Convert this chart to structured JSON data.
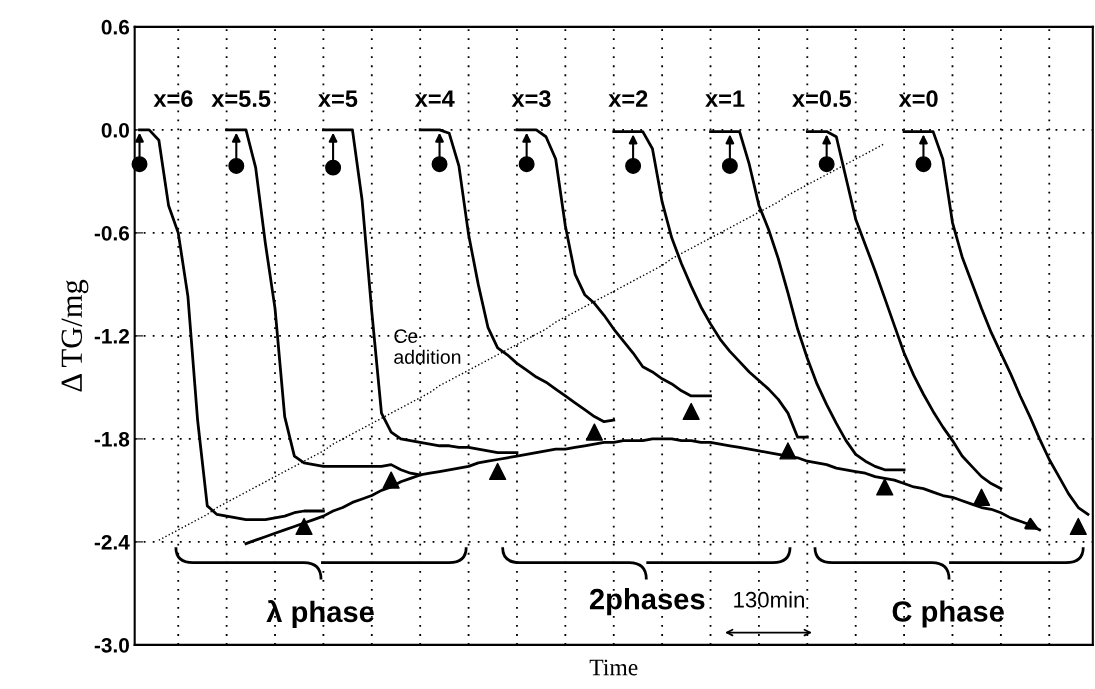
{
  "chart_data": {
    "type": "line",
    "xlabel": "Time",
    "ylabel": "Δ TG/mg",
    "ylim": [
      -3.0,
      0.6
    ],
    "categories": [
      null,
      null,
      null,
      null,
      null,
      null,
      null,
      null,
      null,
      null,
      null,
      null,
      null,
      null,
      null,
      null,
      null,
      null,
      null,
      null,
      null,
      null,
      null,
      null,
      null,
      null,
      null,
      null,
      null,
      null,
      null,
      null,
      null,
      null,
      null,
      null,
      null,
      null,
      null,
      null,
      null,
      null,
      null,
      null,
      null,
      null,
      null,
      null,
      null,
      null,
      null,
      null,
      null,
      null,
      null,
      null,
      null,
      null,
      null,
      null,
      null,
      null,
      null,
      null,
      null,
      null,
      null,
      null,
      null,
      null,
      null,
      null,
      null,
      null,
      null,
      null,
      null,
      null,
      null,
      null,
      null,
      null,
      null,
      null,
      null,
      null,
      null,
      null,
      null,
      null,
      null,
      null,
      null,
      null,
      null,
      null,
      null,
      null,
      null
    ],
    "yticks": [
      {
        "value": 0.6,
        "label": "0.6"
      },
      {
        "value": 0.0,
        "label": "0.0"
      },
      {
        "value": -0.6,
        "label": "-0.6"
      },
      {
        "value": -1.2,
        "label": "-1.2"
      },
      {
        "value": -1.8,
        "label": "-1.8"
      },
      {
        "value": -2.4,
        "label": "-2.4"
      },
      {
        "value": -3.0,
        "label": "-3.0"
      }
    ],
    "tick_labels": "y",
    "grid": true,
    "series": [
      {
        "name": "x=6",
        "color": "#000000",
        "values": [
          0,
          0,
          -0.06,
          -0.44,
          -0.6,
          -0.97,
          -1.69,
          -2.19,
          -2.24,
          -2.25,
          -2.26,
          -2.27,
          -2.27,
          -2.27,
          -2.26,
          -2.25,
          -2.23,
          -2.22,
          -2.22,
          -2.22,
          null,
          null,
          null,
          null,
          null,
          null,
          null,
          null,
          null,
          null,
          null,
          null,
          null,
          null,
          null,
          null,
          null,
          null,
          null,
          null,
          null,
          null,
          null,
          null,
          null,
          null,
          null,
          null,
          null,
          null,
          null,
          null,
          null,
          null,
          null,
          null,
          null,
          null,
          null,
          null,
          null,
          null,
          null,
          null,
          null,
          null,
          null,
          null,
          null,
          null,
          null,
          null,
          null,
          null,
          null,
          null,
          null,
          null,
          null,
          null,
          null,
          null,
          null,
          null,
          null,
          null,
          null,
          null,
          null,
          null,
          null,
          null,
          null,
          null,
          null,
          null,
          null,
          null,
          null
        ]
      },
      {
        "name": "x=5.5",
        "color": "#000000",
        "values": [
          null,
          null,
          null,
          null,
          null,
          null,
          null,
          null,
          null,
          0,
          0,
          0,
          -0.22,
          -0.66,
          -1.04,
          -1.67,
          -1.9,
          -1.94,
          -1.95,
          -1.96,
          -1.96,
          -1.96,
          -1.96,
          -1.96,
          -1.96,
          -1.96,
          -1.95,
          -1.98,
          -2.0,
          -2.01,
          null,
          null,
          null,
          null,
          null,
          null,
          null,
          null,
          null,
          null,
          null,
          null,
          null,
          null,
          null,
          null,
          null,
          null,
          null,
          null,
          null,
          null,
          null,
          null,
          null,
          null,
          null,
          null,
          null,
          null,
          null,
          null,
          null,
          null,
          null,
          null,
          null,
          null,
          null,
          null,
          null,
          null,
          null,
          null,
          null,
          null,
          null,
          null,
          null,
          null,
          null,
          null,
          null,
          null,
          null,
          null,
          null,
          null,
          null,
          null,
          null,
          null,
          null,
          null,
          null,
          null,
          null,
          null,
          null
        ]
      },
      {
        "name": "x=5",
        "color": "#000000",
        "values": [
          null,
          null,
          null,
          null,
          null,
          null,
          null,
          null,
          null,
          null,
          null,
          null,
          null,
          null,
          null,
          null,
          null,
          null,
          null,
          0,
          0,
          0,
          0,
          -0.41,
          -1.06,
          -1.65,
          -1.76,
          -1.8,
          -1.81,
          -1.82,
          -1.83,
          -1.84,
          -1.84,
          -1.85,
          -1.85,
          -1.86,
          -1.87,
          -1.88,
          -1.88,
          -1.88,
          null,
          null,
          null,
          null,
          null,
          null,
          null,
          null,
          null,
          null,
          null,
          null,
          null,
          null,
          null,
          null,
          null,
          null,
          null,
          null,
          null,
          null,
          null,
          null,
          null,
          null,
          null,
          null,
          null,
          null,
          null,
          null,
          null,
          null,
          null,
          null,
          null,
          null,
          null,
          null,
          null,
          null,
          null,
          null,
          null,
          null,
          null,
          null,
          null,
          null,
          null,
          null,
          null,
          null,
          null,
          null,
          null,
          null,
          null
        ]
      },
      {
        "name": "x=4",
        "color": "#000000",
        "values": [
          null,
          null,
          null,
          null,
          null,
          null,
          null,
          null,
          null,
          null,
          null,
          null,
          null,
          null,
          null,
          null,
          null,
          null,
          null,
          null,
          null,
          null,
          null,
          null,
          null,
          null,
          null,
          null,
          null,
          0,
          0,
          0,
          -0.02,
          -0.21,
          -0.61,
          -0.9,
          -1.15,
          -1.27,
          -1.31,
          -1.36,
          -1.4,
          -1.44,
          -1.47,
          -1.51,
          -1.55,
          -1.59,
          -1.63,
          -1.67,
          -1.7,
          -1.69,
          null,
          null,
          null,
          null,
          null,
          null,
          null,
          null,
          null,
          null,
          null,
          null,
          null,
          null,
          null,
          null,
          null,
          null,
          null,
          null,
          null,
          null,
          null,
          null,
          null,
          null,
          null,
          null,
          null,
          null,
          null,
          null,
          null,
          null,
          null,
          null,
          null,
          null,
          null,
          null,
          null,
          null,
          null,
          null,
          null,
          null,
          null,
          null,
          null
        ]
      },
      {
        "name": "x=3",
        "color": "#000000",
        "values": [
          null,
          null,
          null,
          null,
          null,
          null,
          null,
          null,
          null,
          null,
          null,
          null,
          null,
          null,
          null,
          null,
          null,
          null,
          null,
          null,
          null,
          null,
          null,
          null,
          null,
          null,
          null,
          null,
          null,
          null,
          null,
          null,
          null,
          null,
          null,
          null,
          null,
          null,
          null,
          0,
          0,
          0,
          -0.04,
          -0.17,
          -0.56,
          -0.84,
          -0.96,
          -1.01,
          -1.08,
          -1.16,
          -1.23,
          -1.3,
          -1.38,
          -1.41,
          -1.45,
          -1.48,
          -1.52,
          -1.55,
          -1.55,
          -1.55,
          null,
          null,
          null,
          null,
          null,
          null,
          null,
          null,
          null,
          null,
          null,
          null,
          null,
          null,
          null,
          null,
          null,
          null,
          null,
          null,
          null,
          null,
          null,
          null,
          null,
          null,
          null,
          null,
          null,
          null,
          null,
          null,
          null,
          null,
          null,
          null,
          null,
          null,
          null
        ]
      },
      {
        "name": "x=2",
        "color": "#000000",
        "values": [
          null,
          null,
          null,
          null,
          null,
          null,
          null,
          null,
          null,
          null,
          null,
          null,
          null,
          null,
          null,
          null,
          null,
          null,
          null,
          null,
          null,
          null,
          null,
          null,
          null,
          null,
          null,
          null,
          null,
          null,
          null,
          null,
          null,
          null,
          null,
          null,
          null,
          null,
          null,
          null,
          null,
          null,
          null,
          null,
          null,
          null,
          null,
          null,
          null,
          -0.01,
          -0.01,
          -0.01,
          -0.01,
          -0.11,
          -0.42,
          -0.63,
          -0.78,
          -0.91,
          -1.03,
          -1.13,
          -1.22,
          -1.29,
          -1.35,
          -1.41,
          -1.46,
          -1.51,
          -1.57,
          -1.65,
          -1.79,
          -1.79,
          null,
          null,
          null,
          null,
          null,
          null,
          null,
          null,
          null,
          null,
          null,
          null,
          null,
          null,
          null,
          null,
          null,
          null,
          null,
          null,
          null,
          null,
          null,
          null,
          null,
          null,
          null,
          null,
          null
        ]
      },
      {
        "name": "x=1",
        "color": "#000000",
        "values": [
          null,
          null,
          null,
          null,
          null,
          null,
          null,
          null,
          null,
          null,
          null,
          null,
          null,
          null,
          null,
          null,
          null,
          null,
          null,
          null,
          null,
          null,
          null,
          null,
          null,
          null,
          null,
          null,
          null,
          null,
          null,
          null,
          null,
          null,
          null,
          null,
          null,
          null,
          null,
          null,
          null,
          null,
          null,
          null,
          null,
          null,
          null,
          null,
          null,
          null,
          null,
          null,
          null,
          null,
          null,
          null,
          null,
          null,
          null,
          -0.01,
          -0.01,
          -0.01,
          -0.01,
          -0.2,
          -0.44,
          -0.58,
          -0.75,
          -0.95,
          -1.16,
          -1.33,
          -1.48,
          -1.6,
          -1.71,
          -1.81,
          -1.89,
          -1.93,
          -1.96,
          -1.98,
          -1.98,
          -1.98,
          null,
          null,
          null,
          null,
          null,
          null,
          null,
          null,
          null,
          null,
          null,
          null,
          null,
          null,
          null,
          null,
          null,
          null,
          null
        ]
      },
      {
        "name": "x=0.5",
        "color": "#000000",
        "values": [
          null,
          null,
          null,
          null,
          null,
          null,
          null,
          null,
          null,
          null,
          null,
          null,
          null,
          null,
          null,
          null,
          null,
          null,
          null,
          null,
          null,
          null,
          null,
          null,
          null,
          null,
          null,
          null,
          null,
          null,
          null,
          null,
          null,
          null,
          null,
          null,
          null,
          null,
          null,
          null,
          null,
          null,
          null,
          null,
          null,
          null,
          null,
          null,
          null,
          null,
          null,
          null,
          null,
          null,
          null,
          null,
          null,
          null,
          null,
          null,
          null,
          null,
          null,
          null,
          null,
          null,
          null,
          null,
          null,
          -0.01,
          -0.01,
          -0.01,
          -0.04,
          -0.28,
          -0.52,
          -0.67,
          -0.82,
          -0.98,
          -1.14,
          -1.3,
          -1.43,
          -1.54,
          -1.64,
          -1.73,
          -1.81,
          -1.9,
          -1.96,
          -2.02,
          -2.06,
          -2.09,
          null,
          null,
          null,
          null,
          null,
          null,
          null,
          null,
          null
        ]
      },
      {
        "name": "x=0",
        "color": "#000000",
        "values": [
          null,
          null,
          null,
          null,
          null,
          null,
          null,
          null,
          null,
          null,
          null,
          null,
          null,
          null,
          null,
          null,
          null,
          null,
          null,
          null,
          null,
          null,
          null,
          null,
          null,
          null,
          null,
          null,
          null,
          null,
          null,
          null,
          null,
          null,
          null,
          null,
          null,
          null,
          null,
          null,
          null,
          null,
          null,
          null,
          null,
          null,
          null,
          null,
          null,
          null,
          null,
          null,
          null,
          null,
          null,
          null,
          null,
          null,
          null,
          null,
          null,
          null,
          null,
          null,
          null,
          null,
          null,
          null,
          null,
          null,
          null,
          null,
          null,
          null,
          null,
          null,
          null,
          null,
          null,
          -0.01,
          -0.01,
          -0.01,
          -0.01,
          -0.17,
          -0.54,
          -0.74,
          -0.89,
          -1.04,
          -1.18,
          -1.3,
          -1.42,
          -1.55,
          -1.67,
          -1.8,
          -1.92,
          -2.02,
          -2.12,
          -2.2,
          -2.24
        ]
      },
      {
        "type": "scatter",
        "marker": "circle",
        "color": "#000000",
        "values": [
          -0.2,
          null,
          null,
          null,
          null,
          null,
          null,
          null,
          null,
          null,
          -0.21,
          null,
          null,
          null,
          null,
          null,
          null,
          null,
          null,
          null,
          -0.22,
          null,
          null,
          null,
          null,
          null,
          null,
          null,
          null,
          null,
          null,
          -0.2,
          null,
          null,
          null,
          null,
          null,
          null,
          null,
          null,
          -0.2,
          null,
          null,
          null,
          null,
          null,
          null,
          null,
          null,
          null,
          null,
          -0.21,
          null,
          null,
          null,
          null,
          null,
          null,
          null,
          null,
          null,
          -0.21,
          null,
          null,
          null,
          null,
          null,
          null,
          null,
          null,
          null,
          -0.2,
          null,
          null,
          null,
          null,
          null,
          null,
          null,
          null,
          null,
          -0.2,
          null,
          null,
          null,
          null,
          null,
          null,
          null,
          null,
          null,
          null,
          null,
          null,
          null,
          null,
          null,
          null,
          null
        ]
      },
      {
        "type": "scatter",
        "marker": "triangle",
        "color": "#000000",
        "values": [
          null,
          null,
          null,
          null,
          null,
          null,
          null,
          null,
          null,
          null,
          null,
          null,
          null,
          null,
          null,
          null,
          null,
          -2.31,
          null,
          null,
          null,
          null,
          null,
          null,
          null,
          null,
          -2.04,
          null,
          null,
          null,
          null,
          null,
          null,
          null,
          null,
          null,
          null,
          -1.99,
          null,
          null,
          null,
          null,
          null,
          null,
          null,
          null,
          null,
          -1.76,
          null,
          null,
          null,
          null,
          null,
          null,
          null,
          null,
          null,
          -1.64,
          null,
          null,
          null,
          null,
          null,
          null,
          null,
          null,
          null,
          -1.87,
          null,
          null,
          null,
          null,
          null,
          null,
          null,
          null,
          null,
          -2.08,
          null,
          null,
          null,
          null,
          null,
          null,
          null,
          null,
          null,
          -2.14,
          null,
          null,
          null,
          null,
          null,
          null,
          null,
          null,
          null,
          -2.31,
          null
        ]
      },
      {
        "type": "line",
        "color": "#000000",
        "values": [
          null,
          null,
          null,
          null,
          null,
          null,
          null,
          null,
          null,
          null,
          null,
          -2.41,
          -2.39,
          -2.37,
          -2.35,
          -2.33,
          -2.31,
          -2.29,
          -2.27,
          -2.25,
          -2.22,
          -2.2,
          -2.17,
          -2.15,
          -2.13,
          -2.1,
          -2.08,
          -2.05,
          -2.03,
          -2.01,
          -2.0,
          -1.99,
          -1.98,
          -1.97,
          -1.96,
          -1.94,
          -1.93,
          -1.92,
          -1.91,
          -1.9,
          -1.89,
          -1.88,
          -1.87,
          -1.86,
          -1.86,
          -1.85,
          -1.84,
          -1.83,
          -1.82,
          -1.82,
          -1.81,
          -1.81,
          -1.81,
          -1.8,
          -1.8,
          -1.8,
          -1.81,
          -1.81,
          -1.82,
          -1.82,
          -1.83,
          -1.84,
          -1.85,
          -1.86,
          -1.87,
          -1.88,
          -1.89,
          -1.9,
          -1.91,
          -1.93,
          -1.94,
          -1.95,
          -1.97,
          -1.98,
          -1.99,
          -2.0,
          -2.02,
          -2.03,
          -2.04,
          -2.06,
          -2.08,
          -2.09,
          -2.11,
          -2.13,
          -2.14,
          -2.16,
          -2.18,
          -2.2,
          -2.21,
          -2.23,
          -2.26,
          -2.28,
          -2.3,
          -2.33,
          null,
          null,
          null,
          null,
          null
        ]
      },
      {
        "type": "line",
        "line_style": "dotted",
        "color": "#000000",
        "values": [
          null,
          null,
          -2.39,
          -2.36,
          -2.33,
          -2.3,
          -2.27,
          -2.24,
          -2.2,
          -2.17,
          -2.14,
          -2.11,
          -2.08,
          -2.05,
          -2.02,
          -1.99,
          -1.96,
          -1.93,
          -1.9,
          -1.87,
          -1.83,
          -1.8,
          -1.77,
          -1.74,
          -1.71,
          -1.68,
          -1.65,
          -1.62,
          -1.59,
          -1.56,
          -1.53,
          -1.49,
          -1.46,
          -1.43,
          -1.4,
          -1.37,
          -1.34,
          -1.31,
          -1.28,
          -1.25,
          -1.22,
          -1.19,
          -1.16,
          -1.12,
          -1.09,
          -1.06,
          -1.03,
          -1.0,
          -0.97,
          -0.94,
          -0.91,
          -0.88,
          -0.85,
          -0.82,
          -0.79,
          -0.75,
          -0.72,
          -0.69,
          -0.66,
          -0.63,
          -0.6,
          -0.57,
          -0.54,
          -0.51,
          -0.48,
          -0.45,
          -0.42,
          -0.38,
          -0.35,
          -0.32,
          -0.29,
          -0.26,
          -0.23,
          -0.2,
          -0.17,
          -0.14,
          -0.11,
          -0.08,
          null,
          null,
          null,
          null,
          null,
          null,
          null,
          null,
          null,
          null,
          null,
          null,
          null,
          null,
          null,
          null,
          null,
          null,
          null,
          null,
          null
        ]
      }
    ],
    "annotations": [
      "Ce\naddition",
      "λ phase",
      "2phases",
      "130min",
      "C phase"
    ]
  }
}
